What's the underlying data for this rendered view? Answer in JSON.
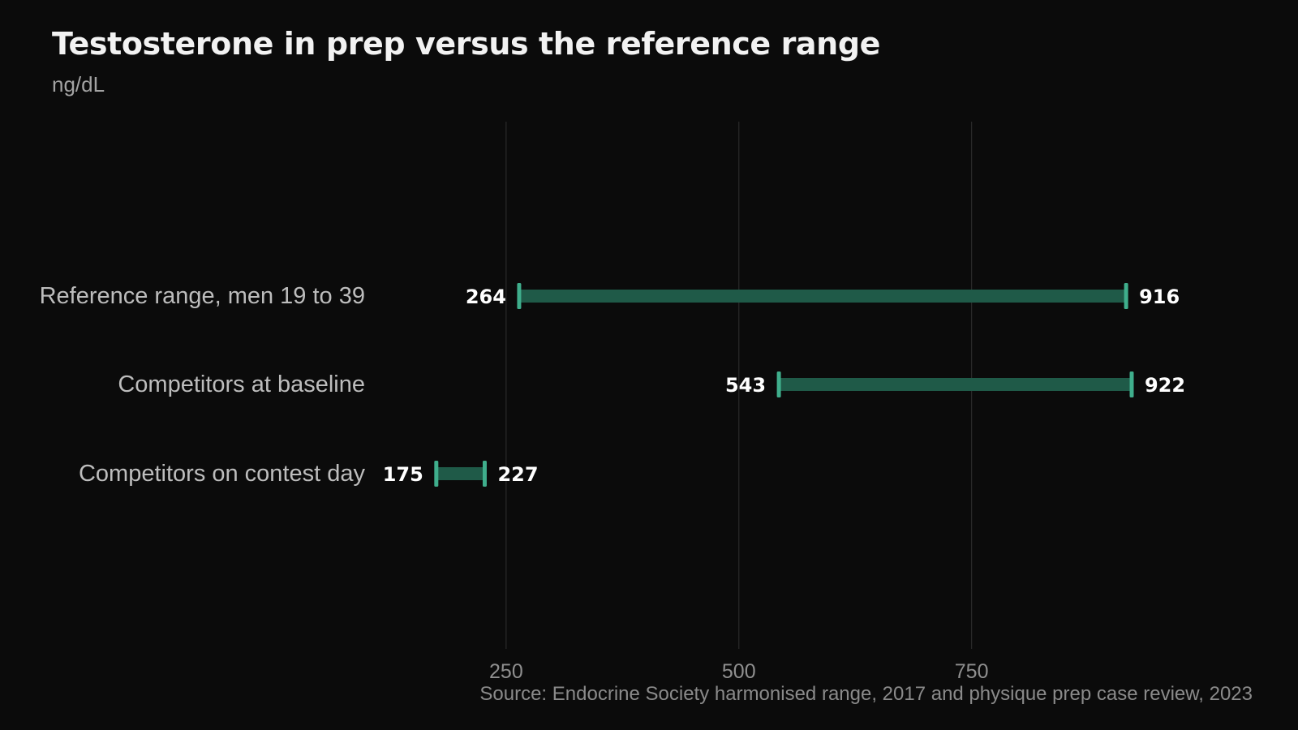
{
  "title": "Testosterone in prep versus the reference range",
  "subtitle": "ng/dL",
  "source": "Source: Endocrine Society harmonised range, 2017 and physique prep case review, 2023",
  "colors": {
    "background": "#0b0b0b",
    "bar": "#1f5a48",
    "cap": "#3fae8c",
    "gridline": "#2a2a2a"
  },
  "chart_data": {
    "type": "range-bar",
    "title": "Testosterone in prep versus the reference range",
    "subtitle": "ng/dL",
    "xlim": [
      0,
      1000
    ],
    "xticks": [
      250,
      500,
      750
    ],
    "xtick_labels": [
      "250",
      "500",
      "750"
    ],
    "grid": true,
    "categories": [
      "Reference range, men 19 to 39",
      "Competitors at baseline",
      "Competitors on contest day"
    ],
    "ranges": [
      {
        "category": "Reference range, men 19 to 39",
        "low": 264,
        "high": 916
      },
      {
        "category": "Competitors at baseline",
        "low": 543,
        "high": 922
      },
      {
        "category": "Competitors on contest day",
        "low": 175,
        "high": 227
      }
    ]
  }
}
